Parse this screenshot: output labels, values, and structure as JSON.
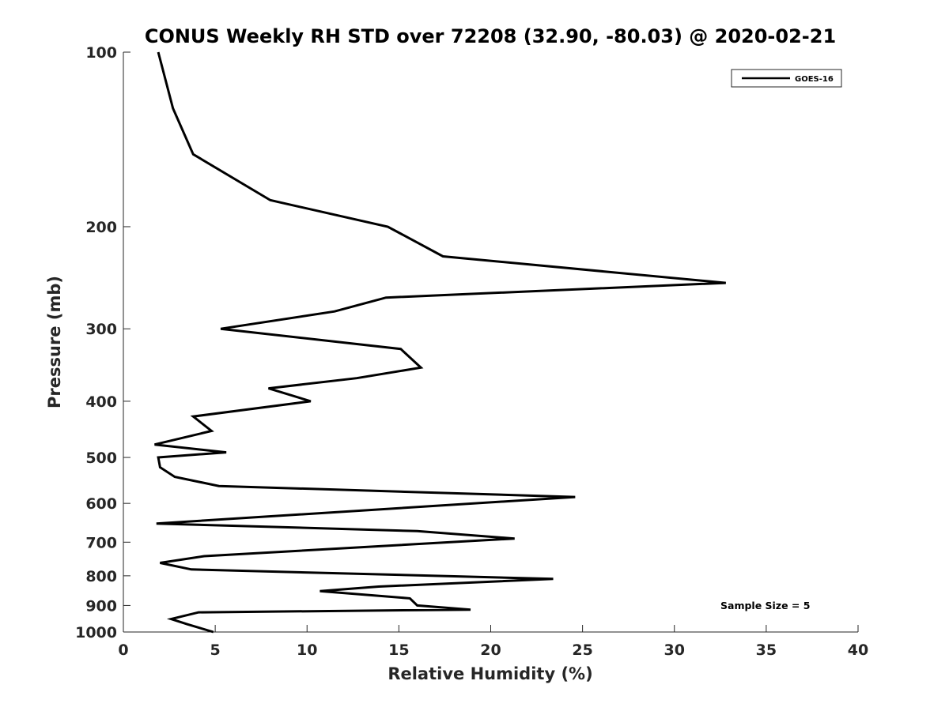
{
  "chart_data": {
    "type": "line",
    "title": "CONUS Weekly RH STD over 72208 (32.90, -80.03) @ 2020-02-21",
    "xlabel": "Relative Humidity (%)",
    "ylabel": "Pressure (mb)",
    "xlim": [
      0,
      40
    ],
    "ylim": [
      100,
      1000
    ],
    "yscale": "log",
    "y_reversed": true,
    "xticks": [
      0,
      5,
      10,
      15,
      20,
      25,
      30,
      35,
      40
    ],
    "xtick_labels": [
      "0",
      "5",
      "10",
      "15",
      "20",
      "25",
      "30",
      "35",
      "40"
    ],
    "yticks": [
      100,
      200,
      300,
      400,
      500,
      600,
      700,
      800,
      900,
      1000
    ],
    "ytick_labels": [
      "100",
      "200",
      "300",
      "400",
      "500",
      "600",
      "700",
      "800",
      "900",
      "1000"
    ],
    "legend": {
      "entries": [
        "GOES-16"
      ],
      "position": "top-right"
    },
    "annotation": "Sample Size = 5",
    "series": [
      {
        "name": "GOES-16",
        "color": "#000000",
        "points": [
          [
            1.9,
            100
          ],
          [
            2.7,
            125
          ],
          [
            3.8,
            150
          ],
          [
            8.0,
            180
          ],
          [
            14.4,
            200
          ],
          [
            17.4,
            225
          ],
          [
            32.8,
            250
          ],
          [
            14.3,
            265
          ],
          [
            11.5,
            280
          ],
          [
            5.3,
            300
          ],
          [
            15.1,
            325
          ],
          [
            16.2,
            350
          ],
          [
            12.7,
            365
          ],
          [
            7.9,
            380
          ],
          [
            10.2,
            400
          ],
          [
            3.8,
            425
          ],
          [
            4.8,
            450
          ],
          [
            1.7,
            475
          ],
          [
            5.6,
            490
          ],
          [
            1.9,
            500
          ],
          [
            2.0,
            520
          ],
          [
            2.8,
            540
          ],
          [
            5.2,
            560
          ],
          [
            24.6,
            585
          ],
          [
            1.8,
            650
          ],
          [
            16.0,
            670
          ],
          [
            21.3,
            690
          ],
          [
            4.4,
            740
          ],
          [
            2.0,
            760
          ],
          [
            3.7,
            780
          ],
          [
            23.4,
            810
          ],
          [
            13.9,
            835
          ],
          [
            10.7,
            850
          ],
          [
            15.6,
            875
          ],
          [
            16.0,
            900
          ],
          [
            18.9,
            915
          ],
          [
            4.1,
            925
          ],
          [
            2.6,
            950
          ],
          [
            3.5,
            970
          ],
          [
            4.9,
            1000
          ]
        ]
      }
    ]
  }
}
